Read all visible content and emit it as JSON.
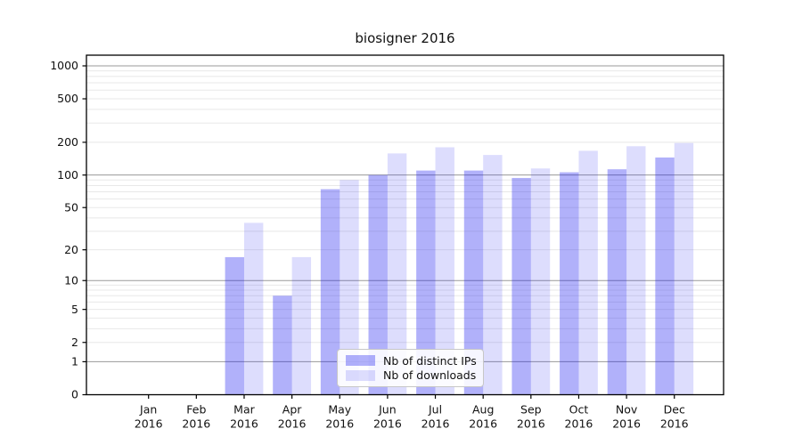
{
  "chart_data": {
    "type": "bar",
    "title": "biosigner 2016",
    "categories": [
      "Jan 2016",
      "Feb 2016",
      "Mar 2016",
      "Apr 2016",
      "May 2016",
      "Jun 2016",
      "Jul 2016",
      "Aug 2016",
      "Sep 2016",
      "Oct 2016",
      "Nov 2016",
      "Dec 2016"
    ],
    "series": [
      {
        "name": "Nb of distinct IPs",
        "color": "rgba(25,25,240,0.34)",
        "values": [
          0,
          0,
          17,
          7,
          74,
          100,
          110,
          110,
          94,
          106,
          113,
          145
        ]
      },
      {
        "name": "Nb of downloads",
        "color": "rgba(25,25,240,0.15)",
        "values": [
          0,
          0,
          36,
          17,
          90,
          158,
          180,
          153,
          115,
          167,
          184,
          197
        ]
      }
    ],
    "yscale": "log1p",
    "ylim": [
      0,
      1250
    ],
    "y_ticks": [
      0,
      1,
      2,
      5,
      10,
      20,
      50,
      100,
      200,
      500,
      1000
    ],
    "major_gridlines": [
      1,
      10,
      100,
      1000
    ],
    "minor_gridlines": [
      2,
      3,
      4,
      5,
      6,
      7,
      8,
      9,
      20,
      30,
      40,
      50,
      60,
      70,
      80,
      90,
      200,
      300,
      400,
      500,
      600,
      700,
      800,
      900
    ],
    "grid": true,
    "legend_position": "lower center",
    "xlabel": "",
    "ylabel": "",
    "colors": {
      "bar_dark_rendered": "#aaaaf7",
      "bar_light_rendered": "#dcdcfa",
      "major_grid": "#9a9a9a",
      "minor_grid": "#e8e8e8",
      "axis": "#000000",
      "text": "#111111"
    }
  }
}
